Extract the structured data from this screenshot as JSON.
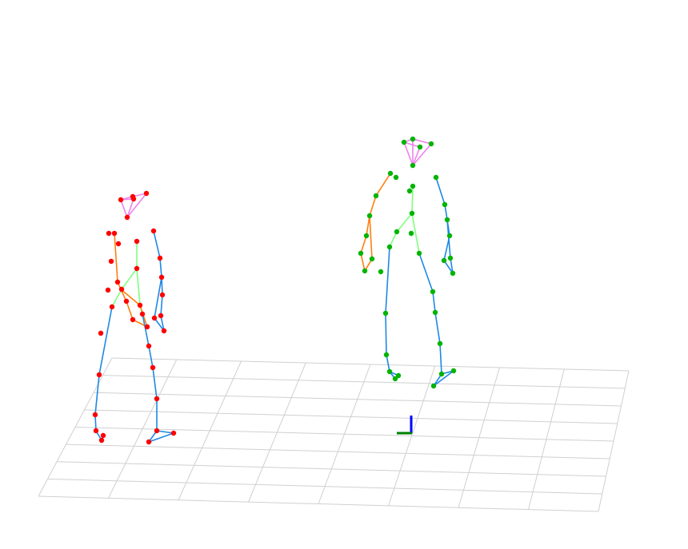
{
  "scene": {
    "grid_color": "#d0d0d0",
    "floor_grid": {
      "columns": 8,
      "rows": 8
    },
    "world_axes": [
      {
        "name": "vertical",
        "color": "#0000ff"
      },
      {
        "name": "depth",
        "color": "#008000"
      }
    ],
    "skeletons": [
      {
        "name": "left-skeleton",
        "joint_color": "#ff0000",
        "head_color": "#ee82ee",
        "arm_color": "#ff7f0e",
        "torso_color": "#7fff7f",
        "leg_color": "#1e88e5"
      },
      {
        "name": "right-skeleton",
        "joint_color": "#00b400",
        "head_color": "#ee82ee",
        "arm_color": "#ff7f0e",
        "torso_color": "#7fff7f",
        "leg_color": "#1e88e5"
      }
    ]
  }
}
